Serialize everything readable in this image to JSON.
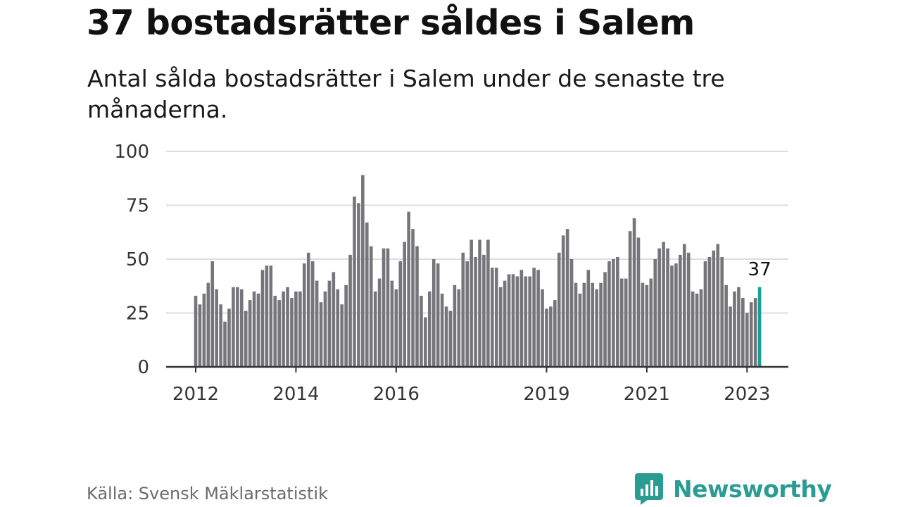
{
  "header": {
    "title": "37 bostadsrätter såldes i Salem",
    "subtitle": "Antal sålda bostadsrätter i Salem under de senaste tre månaderna."
  },
  "footer": {
    "source": "Källa: Svensk Mäklarstatistik",
    "brand": "Newsworthy",
    "brand_icon": "bar-chart-speech-bubble-icon"
  },
  "colors": {
    "bar": "#76767a",
    "highlight": "#1a9e96",
    "gridline": "#dddddd",
    "axis": "#333333",
    "brand": "#2b9c92"
  },
  "chart_data": {
    "type": "bar",
    "title": "37 bostadsrätter såldes i Salem",
    "xlabel": "",
    "ylabel": "",
    "ylim": [
      0,
      100
    ],
    "yticks": [
      0,
      25,
      50,
      75,
      100
    ],
    "grid": true,
    "legend": "none",
    "xticks": [
      {
        "label": "2012",
        "index": 0
      },
      {
        "label": "2014",
        "index": 24
      },
      {
        "label": "2016",
        "index": 48
      },
      {
        "label": "2019",
        "index": 84
      },
      {
        "label": "2021",
        "index": 108
      },
      {
        "label": "2023",
        "index": 132
      }
    ],
    "start": "2012-01",
    "values": [
      33,
      29,
      34,
      39,
      49,
      36,
      29,
      21,
      27,
      37,
      37,
      36,
      26,
      31,
      35,
      34,
      45,
      47,
      47,
      33,
      31,
      35,
      37,
      32,
      35,
      35,
      48,
      53,
      49,
      40,
      30,
      35,
      40,
      44,
      36,
      29,
      38,
      52,
      79,
      76,
      89,
      67,
      56,
      35,
      41,
      55,
      55,
      40,
      36,
      49,
      58,
      72,
      64,
      56,
      33,
      23,
      35,
      50,
      48,
      34,
      28,
      26,
      38,
      36,
      53,
      49,
      59,
      51,
      59,
      52,
      59,
      46,
      46,
      37,
      40,
      43,
      43,
      42,
      45,
      42,
      42,
      46,
      45,
      36,
      27,
      28,
      31,
      53,
      61,
      64,
      50,
      39,
      34,
      39,
      45,
      39,
      36,
      39,
      44,
      49,
      50,
      51,
      41,
      41,
      63,
      69,
      60,
      39,
      38,
      41,
      50,
      55,
      58,
      55,
      47,
      48,
      52,
      57,
      53,
      35,
      34,
      36,
      49,
      51,
      54,
      57,
      51,
      38,
      28,
      35,
      37,
      32,
      25,
      30,
      32,
      37
    ],
    "highlight_index": 135,
    "highlight_label": "37"
  }
}
